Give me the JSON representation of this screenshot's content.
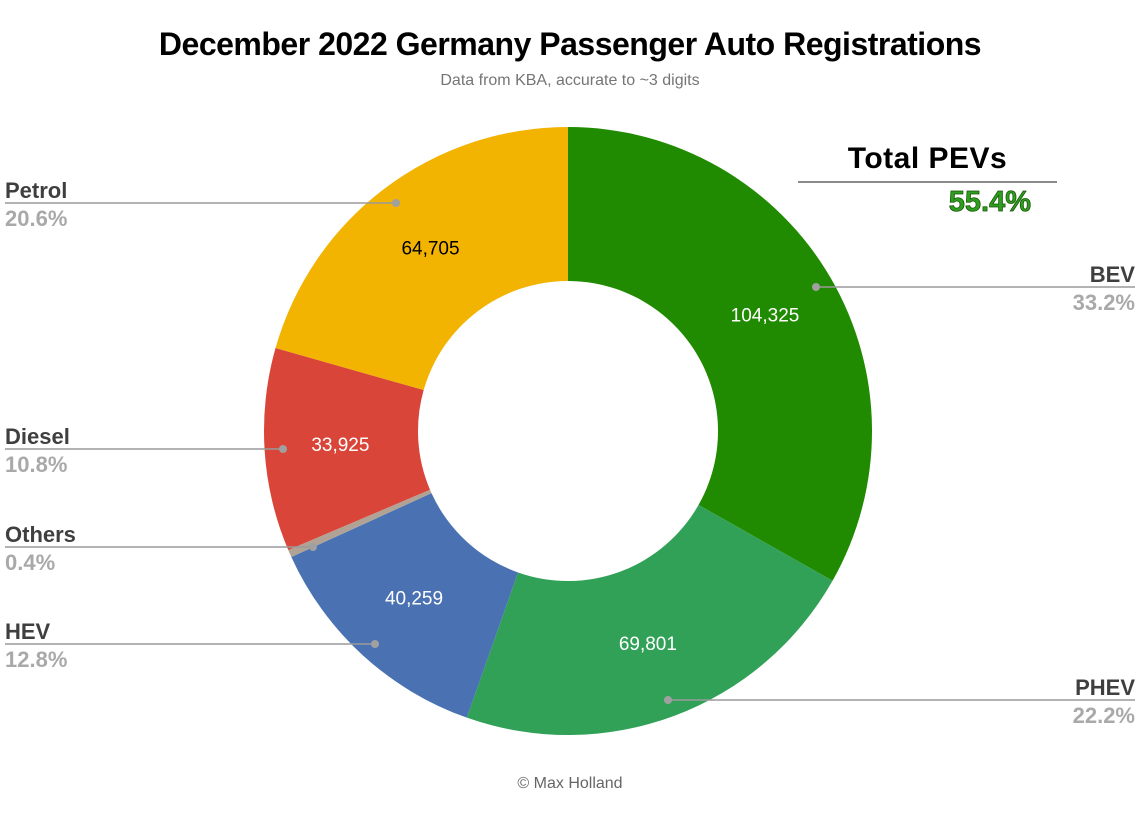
{
  "header": {
    "title": "December 2022 Germany Passenger Auto Registrations",
    "subtitle": "Data from KBA, accurate to ~3 digits"
  },
  "total_pevs": {
    "label": "Total PEVs",
    "value": "55.4%",
    "value_color": "#2d9e1f"
  },
  "footer": {
    "copyright": "© Max Holland"
  },
  "colors": {
    "background": "#ffffff",
    "callout_name": "#3f3f3f",
    "callout_pct": "#a9a9a9",
    "leader_line": "#9a9a9a",
    "leader_dot": "#a0a0a0"
  },
  "chart_data": {
    "type": "pie",
    "donut": true,
    "title": "December 2022 Germany Passenger Auto Registrations",
    "unit": "passenger auto registrations",
    "legend_position": "none (external callout labels with leader lines)",
    "slices": [
      {
        "label": "BEV",
        "pct": 33.2,
        "pct_text": "33.2%",
        "registrations": "104,325",
        "color": "#208b00",
        "value_color": "#ffffff"
      },
      {
        "label": "PHEV",
        "pct": 22.2,
        "pct_text": "22.2%",
        "registrations": "69,801",
        "color": "#31a158",
        "value_color": "#ffffff"
      },
      {
        "label": "HEV",
        "pct": 12.8,
        "pct_text": "12.8%",
        "registrations": "40,259",
        "color": "#4a72b2",
        "value_color": "#ffffff"
      },
      {
        "label": "Others",
        "pct": 0.4,
        "pct_text": "0.4%",
        "registrations": null,
        "color": "#b1a296",
        "value_color": "#ffffff"
      },
      {
        "label": "Diesel",
        "pct": 10.8,
        "pct_text": "10.8%",
        "registrations": "33,925",
        "color": "#d94539",
        "value_color": "#ffffff"
      },
      {
        "label": "Petrol",
        "pct": 20.6,
        "pct_text": "20.6%",
        "registrations": "64,705",
        "color": "#f2b301",
        "value_color": "#000000"
      }
    ]
  }
}
